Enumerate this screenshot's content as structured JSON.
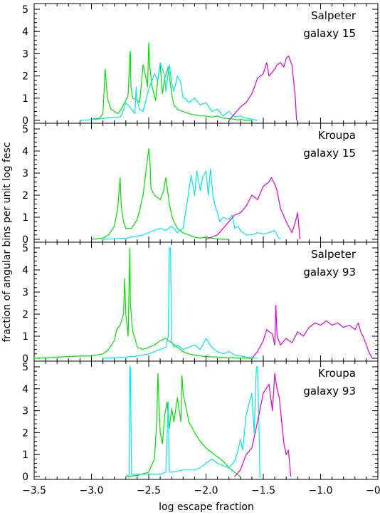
{
  "figure": {
    "xlabel": "log escape fraction",
    "ylabel": "fraction of angular bins per unit log fesc"
  },
  "chart_data": [
    {
      "type": "line",
      "annotation": [
        "Salpeter",
        "galaxy 15"
      ],
      "xlim": [
        -3.5,
        -0.5
      ],
      "ylim": [
        0,
        5
      ],
      "x_ticks": [
        -3.5,
        -3.0,
        -2.5,
        -2.0,
        -1.5,
        -1.0,
        -0.5
      ],
      "y_ticks": [
        0,
        1,
        2,
        3,
        4,
        5
      ],
      "series": [
        {
          "color": "#00dd00",
          "x": [
            -3.0,
            -2.93,
            -2.9,
            -2.89,
            -2.88,
            -2.86,
            -2.83,
            -2.8,
            -2.77,
            -2.74,
            -2.7,
            -2.68,
            -2.665,
            -2.66,
            -2.655,
            -2.64,
            -2.6,
            -2.58,
            -2.57,
            -2.55,
            -2.52,
            -2.51,
            -2.5,
            -2.49,
            -2.47,
            -2.44,
            -2.42,
            -2.4,
            -2.38,
            -2.36,
            -2.34,
            -2.33,
            -2.31,
            -2.3,
            -2.28,
            -2.25,
            -2.2,
            -2.15,
            -2.1,
            -2.05,
            -2.0,
            -1.95,
            -1.9,
            -1.85,
            -1.8,
            -1.75,
            -1.72,
            -1.7,
            -1.65,
            -1.6
          ],
          "y": [
            0.05,
            0.1,
            0.3,
            1.3,
            2.3,
            1.0,
            0.5,
            0.4,
            0.3,
            0.5,
            0.9,
            1.1,
            2.9,
            3.1,
            1.5,
            1.0,
            0.9,
            0.8,
            1.3,
            2.5,
            1.8,
            1.5,
            3.5,
            2.4,
            1.5,
            0.9,
            1.9,
            2.5,
            1.2,
            1.9,
            2.2,
            2.4,
            1.6,
            1.2,
            0.7,
            0.5,
            0.4,
            0.3,
            0.25,
            0.2,
            0.2,
            0.15,
            0.2,
            0.1,
            0.08,
            0.05,
            0.02,
            0.05,
            0.0,
            0.0
          ]
        },
        {
          "color": "#00e5ee",
          "x": [
            -3.1,
            -2.95,
            -2.87,
            -2.8,
            -2.75,
            -2.73,
            -2.7,
            -2.65,
            -2.62,
            -2.61,
            -2.6,
            -2.58,
            -2.55,
            -2.5,
            -2.45,
            -2.42,
            -2.4,
            -2.38,
            -2.36,
            -2.35,
            -2.32,
            -2.3,
            -2.28,
            -2.25,
            -2.22,
            -2.2,
            -2.18,
            -2.15,
            -2.1,
            -2.05,
            -2.0,
            -1.95,
            -1.9,
            -1.85,
            -1.8,
            -1.75,
            -1.7,
            -1.65,
            -1.6,
            -1.55
          ],
          "y": [
            0.0,
            0.05,
            0.1,
            0.15,
            0.15,
            0.3,
            0.8,
            0.5,
            0.3,
            1.5,
            0.9,
            0.5,
            0.4,
            1.4,
            2.1,
            1.8,
            2.6,
            2.3,
            2.0,
            1.3,
            2.5,
            1.7,
            1.3,
            2.0,
            1.7,
            1.0,
            1.0,
            0.8,
            1.0,
            0.7,
            0.8,
            0.4,
            0.5,
            0.2,
            0.4,
            0.15,
            0.2,
            0.1,
            0.05,
            0.0
          ]
        },
        {
          "color": "#dd00cc",
          "x": [
            -1.8,
            -1.75,
            -1.7,
            -1.65,
            -1.6,
            -1.57,
            -1.55,
            -1.5,
            -1.47,
            -1.45,
            -1.4,
            -1.38,
            -1.35,
            -1.32,
            -1.3,
            -1.28,
            -1.25,
            -1.22,
            -1.21
          ],
          "y": [
            0.0,
            0.3,
            0.6,
            0.8,
            1.2,
            1.6,
            1.9,
            2.1,
            2.6,
            2.0,
            2.3,
            2.5,
            2.6,
            2.4,
            2.8,
            2.9,
            2.5,
            1.0,
            0.0
          ]
        }
      ]
    },
    {
      "type": "line",
      "annotation": [
        "Kroupa",
        "galaxy 15"
      ],
      "xlim": [
        -3.5,
        -0.5
      ],
      "ylim": [
        0,
        5
      ],
      "x_ticks": [
        -3.5,
        -3.0,
        -2.5,
        -2.0,
        -1.5,
        -1.0,
        -0.5
      ],
      "y_ticks": [
        0,
        1,
        2,
        3,
        4,
        5
      ],
      "series": [
        {
          "color": "#00dd00",
          "x": [
            -3.0,
            -2.9,
            -2.85,
            -2.8,
            -2.77,
            -2.75,
            -2.74,
            -2.72,
            -2.7,
            -2.65,
            -2.6,
            -2.58,
            -2.55,
            -2.5,
            -2.49,
            -2.48,
            -2.45,
            -2.4,
            -2.37,
            -2.35,
            -2.32,
            -2.3,
            -2.28,
            -2.25,
            -2.2,
            -2.15,
            -2.1,
            -2.05,
            -2.0,
            -1.95,
            -1.9,
            -1.85,
            -1.8
          ],
          "y": [
            0.0,
            0.05,
            0.2,
            0.6,
            1.4,
            2.8,
            1.5,
            0.8,
            0.5,
            0.5,
            0.9,
            1.3,
            2.0,
            4.1,
            3.6,
            2.3,
            2.0,
            1.8,
            2.2,
            2.8,
            1.6,
            1.1,
            0.8,
            0.5,
            0.3,
            0.2,
            0.1,
            0.05,
            0.1,
            0.05,
            0.02,
            0.0,
            0.0
          ]
        },
        {
          "color": "#00e5ee",
          "x": [
            -2.9,
            -2.7,
            -2.55,
            -2.5,
            -2.45,
            -2.4,
            -2.35,
            -2.3,
            -2.25,
            -2.2,
            -2.17,
            -2.15,
            -2.13,
            -2.1,
            -2.08,
            -2.05,
            -2.03,
            -2.0,
            -1.98,
            -1.96,
            -1.94,
            -1.92,
            -1.9,
            -1.88,
            -1.85,
            -1.8,
            -1.77,
            -1.75,
            -1.72,
            -1.7,
            -1.65,
            -1.6,
            -1.55,
            -1.5,
            -1.45,
            -1.4,
            -1.37,
            -1.35
          ],
          "y": [
            0.0,
            0.05,
            0.2,
            0.3,
            0.4,
            0.5,
            0.4,
            0.6,
            0.3,
            0.5,
            1.5,
            2.2,
            2.9,
            2.0,
            3.1,
            2.2,
            2.8,
            3.1,
            2.0,
            3.2,
            2.0,
            1.5,
            1.2,
            0.8,
            1.0,
            0.9,
            1.1,
            0.5,
            0.6,
            0.4,
            0.2,
            0.2,
            0.3,
            0.25,
            0.3,
            0.4,
            0.1,
            0.0
          ]
        },
        {
          "color": "#dd00cc",
          "x": [
            -2.0,
            -1.9,
            -1.85,
            -1.8,
            -1.75,
            -1.7,
            -1.65,
            -1.6,
            -1.55,
            -1.5,
            -1.45,
            -1.43,
            -1.4,
            -1.38,
            -1.35,
            -1.3,
            -1.27,
            -1.25,
            -1.22,
            -1.2,
            -1.18
          ],
          "y": [
            0.0,
            0.2,
            0.5,
            0.8,
            1.1,
            1.2,
            1.5,
            2.0,
            1.8,
            2.4,
            2.6,
            2.8,
            2.5,
            2.2,
            1.4,
            0.8,
            0.5,
            0.3,
            0.8,
            1.2,
            0.0
          ]
        }
      ]
    },
    {
      "type": "line",
      "annotation": [
        "Salpeter",
        "galaxy 93"
      ],
      "xlim": [
        -3.5,
        -0.5
      ],
      "ylim": [
        0,
        5
      ],
      "x_ticks": [
        -3.5,
        -3.0,
        -2.5,
        -2.0,
        -1.5,
        -1.0,
        -0.5
      ],
      "y_ticks": [
        0,
        1,
        2,
        3,
        4,
        5
      ],
      "series": [
        {
          "color": "#00dd00",
          "x": [
            -3.5,
            -3.3,
            -3.1,
            -3.0,
            -2.9,
            -2.85,
            -2.8,
            -2.78,
            -2.75,
            -2.72,
            -2.71,
            -2.7,
            -2.68,
            -2.67,
            -2.665,
            -2.66,
            -2.64,
            -2.62,
            -2.6,
            -2.55,
            -2.5,
            -2.45,
            -2.4,
            -2.35,
            -2.3,
            -2.25,
            -2.2,
            -2.15,
            -2.1,
            -2.05,
            -2.0,
            -1.9,
            -1.8,
            -1.7,
            -1.6
          ],
          "y": [
            0.0,
            0.05,
            0.1,
            0.1,
            0.2,
            0.4,
            0.8,
            1.3,
            1.5,
            2.0,
            3.6,
            2.0,
            1.0,
            3.5,
            5.0,
            2.5,
            1.2,
            0.9,
            0.5,
            0.4,
            0.5,
            0.6,
            0.8,
            0.9,
            0.7,
            0.5,
            0.3,
            0.2,
            0.15,
            0.1,
            0.08,
            0.05,
            0.03,
            0.01,
            0.0
          ]
        },
        {
          "color": "#00e5ee",
          "x": [
            -2.9,
            -2.7,
            -2.6,
            -2.5,
            -2.45,
            -2.4,
            -2.35,
            -2.33,
            -2.32,
            -2.31,
            -2.3,
            -2.28,
            -2.25,
            -2.2,
            -2.1,
            -2.05,
            -2.0,
            -1.95,
            -1.9,
            -1.85,
            -1.8,
            -1.75,
            -1.7,
            -1.65,
            -1.6,
            -1.55
          ],
          "y": [
            0.0,
            0.05,
            0.1,
            0.2,
            0.3,
            0.4,
            0.5,
            1.0,
            5.0,
            5.0,
            0.8,
            0.5,
            0.6,
            0.4,
            0.6,
            0.4,
            0.9,
            0.5,
            0.3,
            0.2,
            0.3,
            0.15,
            0.1,
            0.05,
            0.02,
            0.0
          ]
        },
        {
          "color": "#dd00cc",
          "x": [
            -1.6,
            -1.55,
            -1.5,
            -1.47,
            -1.45,
            -1.42,
            -1.4,
            -1.39,
            -1.38,
            -1.35,
            -1.3,
            -1.25,
            -1.2,
            -1.15,
            -1.1,
            -1.05,
            -1.0,
            -0.95,
            -0.9,
            -0.85,
            -0.8,
            -0.75,
            -0.7,
            -0.67,
            -0.65,
            -0.63,
            -0.6,
            -0.58,
            -0.55
          ],
          "y": [
            0.0,
            0.3,
            0.8,
            1.3,
            1.2,
            1.1,
            0.6,
            2.4,
            1.0,
            0.6,
            0.9,
            0.7,
            1.2,
            1.0,
            1.4,
            1.6,
            1.5,
            1.7,
            1.5,
            1.6,
            1.4,
            1.5,
            1.3,
            1.6,
            1.2,
            1.0,
            0.6,
            0.3,
            0.0
          ]
        }
      ]
    },
    {
      "type": "line",
      "annotation": [
        "Kroupa",
        "galaxy 93"
      ],
      "xlim": [
        -3.5,
        -0.5
      ],
      "ylim": [
        0,
        5
      ],
      "x_ticks": [
        -3.5,
        -3.0,
        -2.5,
        -2.0,
        -1.5,
        -1.0,
        -0.5
      ],
      "y_ticks": [
        0,
        1,
        2,
        3,
        4,
        5
      ],
      "series": [
        {
          "color": "#00dd00",
          "x": [
            -2.7,
            -2.6,
            -2.5,
            -2.45,
            -2.43,
            -2.42,
            -2.4,
            -2.38,
            -2.36,
            -2.34,
            -2.32,
            -2.3,
            -2.28,
            -2.25,
            -2.22,
            -2.21,
            -2.2,
            -2.15,
            -2.1,
            -2.05,
            -2.0,
            -1.95,
            -1.9,
            -1.85,
            -1.8,
            -1.75,
            -1.7
          ],
          "y": [
            0.0,
            0.05,
            0.2,
            0.8,
            2.5,
            4.7,
            2.0,
            1.5,
            2.8,
            3.4,
            2.2,
            3.1,
            2.5,
            3.6,
            2.5,
            4.6,
            3.8,
            2.5,
            2.0,
            1.6,
            1.3,
            1.1,
            0.9,
            0.7,
            0.4,
            0.2,
            0.0
          ]
        },
        {
          "color": "#00e5ee",
          "x": [
            -2.7,
            -2.67,
            -2.665,
            -2.66,
            -2.65,
            -2.5,
            -2.4,
            -2.35,
            -2.33,
            -2.32,
            -2.31,
            -2.3,
            -2.2,
            -2.1,
            -2.05,
            -2.0,
            -1.95,
            -1.9,
            -1.85,
            -1.8,
            -1.75,
            -1.72,
            -1.7,
            -1.68,
            -1.65,
            -1.6,
            -1.58,
            -1.56,
            -1.55,
            -1.54,
            -1.53,
            -1.52
          ],
          "y": [
            0.0,
            0.1,
            5.0,
            5.0,
            0.1,
            0.1,
            0.1,
            0.2,
            3.4,
            0.2,
            0.2,
            0.2,
            0.3,
            0.3,
            0.4,
            0.6,
            0.8,
            0.6,
            0.5,
            0.4,
            0.7,
            1.2,
            1.7,
            1.2,
            2.8,
            3.8,
            2.0,
            5.0,
            5.0,
            3.0,
            0.0,
            0.0
          ]
        },
        {
          "color": "#dd00cc",
          "x": [
            -1.75,
            -1.7,
            -1.65,
            -1.6,
            -1.55,
            -1.5,
            -1.45,
            -1.42,
            -1.4,
            -1.38,
            -1.36,
            -1.34,
            -1.32,
            -1.3,
            -1.28,
            -1.26
          ],
          "y": [
            0.0,
            0.3,
            1.0,
            1.3,
            2.5,
            3.8,
            4.2,
            3.0,
            4.7,
            4.0,
            3.6,
            2.5,
            1.5,
            1.0,
            1.2,
            0.0
          ]
        }
      ]
    }
  ]
}
